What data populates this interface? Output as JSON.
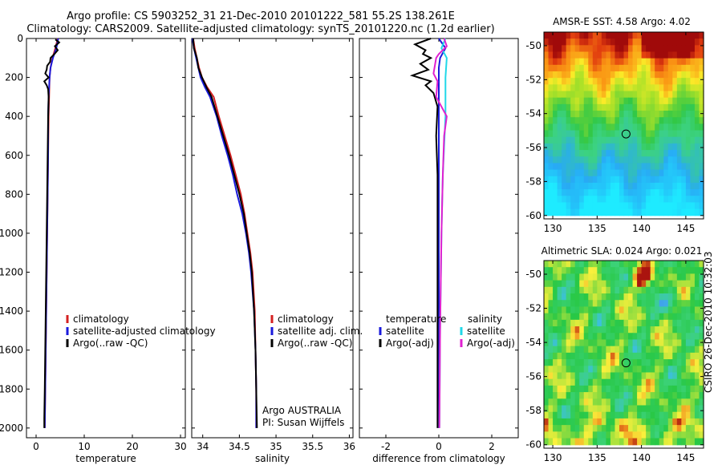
{
  "header": {
    "title_line1": "Argo profile: CS 5903252_31 21-Dec-2010 20101222_581 55.2S 138.261E",
    "title_line2": "Climatology: CARS2009. Satellite-adjusted climatology: synTS_20101220.nc (1.2d earlier)"
  },
  "footer": {
    "stamp": "CSIRO 26-Dec-2010 10:32:03"
  },
  "colors": {
    "climatology": "#d42020",
    "satellite": "#1a1adc",
    "argo": "#000000",
    "salinity_satellite": "#20d8e8",
    "salinity_argo": "#e020d0"
  },
  "chart_data": [
    {
      "type": "line",
      "id": "temperature-profile",
      "xlabel": "temperature",
      "ylabel": "",
      "xlim": [
        -2,
        31
      ],
      "ylim": [
        2050,
        0
      ],
      "xticks": [
        0,
        10,
        20,
        30
      ],
      "yticks": [
        0,
        200,
        400,
        600,
        800,
        1000,
        1200,
        1400,
        1600,
        1800,
        2000
      ],
      "legend": [
        "climatology",
        "satellite-adjusted climatology",
        "Argo(..raw -QC)"
      ],
      "series": [
        {
          "name": "climatology",
          "color": "#d42020",
          "points": [
            [
              4.5,
              0
            ],
            [
              4.0,
              50
            ],
            [
              3.4,
              100
            ],
            [
              3.0,
              150
            ],
            [
              2.8,
              200
            ],
            [
              2.7,
              300
            ],
            [
              2.6,
              400
            ],
            [
              2.5,
              600
            ],
            [
              2.4,
              800
            ],
            [
              2.3,
              1000
            ],
            [
              2.2,
              1200
            ],
            [
              2.1,
              1400
            ],
            [
              2.0,
              1600
            ],
            [
              1.9,
              1800
            ],
            [
              1.8,
              2000
            ]
          ]
        },
        {
          "name": "satellite-adjusted climatology",
          "color": "#1a1adc",
          "points": [
            [
              4.6,
              0
            ],
            [
              4.2,
              50
            ],
            [
              3.5,
              100
            ],
            [
              3.0,
              150
            ],
            [
              2.8,
              200
            ],
            [
              2.6,
              300
            ],
            [
              2.5,
              400
            ],
            [
              2.5,
              600
            ],
            [
              2.4,
              800
            ],
            [
              2.3,
              1000
            ],
            [
              2.2,
              1200
            ],
            [
              2.1,
              1400
            ],
            [
              2.0,
              1600
            ],
            [
              1.9,
              1800
            ],
            [
              1.8,
              2000
            ]
          ]
        },
        {
          "name": "Argo(..raw -QC)",
          "color": "#000000",
          "points": [
            [
              4.0,
              5
            ],
            [
              4.8,
              20
            ],
            [
              3.9,
              40
            ],
            [
              4.5,
              60
            ],
            [
              3.8,
              80
            ],
            [
              3.0,
              100
            ],
            [
              2.9,
              120
            ],
            [
              2.3,
              140
            ],
            [
              2.2,
              160
            ],
            [
              1.9,
              180
            ],
            [
              2.6,
              200
            ],
            [
              1.7,
              220
            ],
            [
              2.2,
              240
            ],
            [
              2.5,
              260
            ],
            [
              2.6,
              300
            ],
            [
              2.5,
              400
            ],
            [
              2.4,
              600
            ],
            [
              2.3,
              800
            ],
            [
              2.2,
              1000
            ],
            [
              2.1,
              1200
            ],
            [
              2.0,
              1400
            ],
            [
              1.9,
              1600
            ],
            [
              1.8,
              1800
            ],
            [
              1.7,
              1950
            ],
            [
              1.7,
              2000
            ]
          ]
        }
      ]
    },
    {
      "type": "line",
      "id": "salinity-profile",
      "xlabel": "salinity",
      "xlim": [
        33.85,
        36.05
      ],
      "ylim": [
        2050,
        0
      ],
      "xticks": [
        34,
        34.5,
        35,
        35.5,
        36
      ],
      "legend": [
        "climatology",
        "satellite adj. clim.",
        "Argo(..raw -QC)"
      ],
      "annotations": [
        "Argo AUSTRALIA",
        "PI: Susan Wijffels"
      ],
      "series": [
        {
          "name": "climatology",
          "color": "#d42020",
          "points": [
            [
              33.87,
              0
            ],
            [
              33.89,
              50
            ],
            [
              33.92,
              100
            ],
            [
              33.95,
              150
            ],
            [
              33.99,
              200
            ],
            [
              34.06,
              250
            ],
            [
              34.15,
              300
            ],
            [
              34.22,
              400
            ],
            [
              34.3,
              500
            ],
            [
              34.38,
              600
            ],
            [
              34.45,
              700
            ],
            [
              34.52,
              800
            ],
            [
              34.57,
              900
            ],
            [
              34.61,
              1000
            ],
            [
              34.65,
              1100
            ],
            [
              34.68,
              1200
            ],
            [
              34.71,
              1400
            ],
            [
              34.72,
              1600
            ],
            [
              34.73,
              1800
            ],
            [
              34.73,
              2000
            ]
          ]
        },
        {
          "name": "satellite adj. clim.",
          "color": "#1a1adc",
          "points": [
            [
              33.86,
              0
            ],
            [
              33.88,
              50
            ],
            [
              33.91,
              100
            ],
            [
              33.94,
              150
            ],
            [
              33.97,
              200
            ],
            [
              34.03,
              250
            ],
            [
              34.1,
              300
            ],
            [
              34.19,
              400
            ],
            [
              34.26,
              500
            ],
            [
              34.34,
              600
            ],
            [
              34.41,
              700
            ],
            [
              34.47,
              800
            ],
            [
              34.54,
              900
            ],
            [
              34.59,
              1000
            ],
            [
              34.63,
              1100
            ],
            [
              34.66,
              1200
            ],
            [
              34.7,
              1400
            ],
            [
              34.72,
              1600
            ],
            [
              34.73,
              1800
            ],
            [
              34.73,
              2000
            ]
          ]
        },
        {
          "name": "Argo(..raw -QC)",
          "color": "#000000",
          "points": [
            [
              33.87,
              0
            ],
            [
              33.88,
              50
            ],
            [
              33.92,
              100
            ],
            [
              33.94,
              150
            ],
            [
              33.99,
              200
            ],
            [
              34.05,
              250
            ],
            [
              34.12,
              300
            ],
            [
              34.2,
              400
            ],
            [
              34.28,
              500
            ],
            [
              34.36,
              600
            ],
            [
              34.43,
              700
            ],
            [
              34.5,
              800
            ],
            [
              34.56,
              900
            ],
            [
              34.6,
              1000
            ],
            [
              34.64,
              1100
            ],
            [
              34.67,
              1200
            ],
            [
              34.7,
              1400
            ],
            [
              34.72,
              1600
            ],
            [
              34.73,
              1800
            ],
            [
              34.74,
              2000
            ]
          ]
        }
      ]
    },
    {
      "type": "line",
      "id": "difference-profile",
      "xlabel": "difference from climatology",
      "xlim": [
        -3.0,
        3.0
      ],
      "ylim": [
        2050,
        0
      ],
      "xticks": [
        -2,
        0,
        2
      ],
      "legend_groups": [
        {
          "title": "temperature",
          "entries": [
            "satellite",
            "Argo(-adj)"
          ]
        },
        {
          "title": "salinity",
          "entries": [
            "satellite",
            "Argo(-adj)"
          ]
        }
      ],
      "series": [
        {
          "name": "temperature satellite",
          "color": "#1a1adc",
          "points": [
            [
              0.0,
              0
            ],
            [
              0.25,
              50
            ],
            [
              0.05,
              100
            ],
            [
              0.0,
              150
            ],
            [
              0.0,
              200
            ],
            [
              0.0,
              300
            ],
            [
              0.0,
              500
            ],
            [
              0.0,
              1000
            ],
            [
              0.0,
              1500
            ],
            [
              0.0,
              2000
            ]
          ]
        },
        {
          "name": "temperature Argo(-adj)",
          "color": "#000000",
          "points": [
            [
              -0.3,
              0
            ],
            [
              -0.9,
              30
            ],
            [
              -0.5,
              60
            ],
            [
              -0.6,
              80
            ],
            [
              -0.3,
              100
            ],
            [
              -0.7,
              130
            ],
            [
              -0.4,
              160
            ],
            [
              -1.0,
              190
            ],
            [
              -0.3,
              220
            ],
            [
              -0.5,
              240
            ],
            [
              -0.2,
              280
            ],
            [
              -0.05,
              350
            ],
            [
              -0.1,
              500
            ],
            [
              -0.05,
              700
            ],
            [
              -0.05,
              900
            ],
            [
              -0.05,
              1200
            ],
            [
              -0.05,
              1500
            ],
            [
              -0.05,
              1800
            ],
            [
              -0.05,
              2000
            ]
          ]
        },
        {
          "name": "salinity satellite",
          "color": "#20d8e8",
          "points": [
            [
              0.25,
              0
            ],
            [
              0.1,
              50
            ],
            [
              0.3,
              100
            ],
            [
              0.25,
              200
            ],
            [
              0.25,
              400
            ],
            [
              0.15,
              700
            ],
            [
              0.1,
              1000
            ],
            [
              0.05,
              1500
            ],
            [
              0.02,
              2000
            ]
          ]
        },
        {
          "name": "salinity Argo(-adj)",
          "color": "#e020d0",
          "points": [
            [
              0.2,
              0
            ],
            [
              0.3,
              40
            ],
            [
              0.0,
              80
            ],
            [
              -0.1,
              100
            ],
            [
              -0.2,
              180
            ],
            [
              -0.05,
              220
            ],
            [
              -0.1,
              300
            ],
            [
              0.3,
              400
            ],
            [
              0.2,
              500
            ],
            [
              0.15,
              700
            ],
            [
              0.1,
              1000
            ],
            [
              0.05,
              1500
            ],
            [
              0.02,
              2000
            ]
          ]
        }
      ]
    },
    {
      "type": "heatmap",
      "id": "sst-map",
      "title": "AMSR-E SST: 4.58 Argo: 4.02",
      "xlim": [
        129,
        147
      ],
      "ylim": [
        -60.2,
        -49.2
      ],
      "xticks": [
        130,
        135,
        140,
        145
      ],
      "yticks": [
        -50,
        -52,
        -54,
        -56,
        -58,
        -60
      ],
      "marker": {
        "lon": 138.261,
        "lat": -55.2
      }
    },
    {
      "type": "heatmap",
      "id": "sla-map",
      "title": "Altimetric SLA: 0.024 Argo: 0.021",
      "xlim": [
        129,
        147
      ],
      "ylim": [
        -60.2,
        -49.2
      ],
      "xticks": [
        130,
        135,
        140,
        145
      ],
      "yticks": [
        -50,
        -52,
        -54,
        -56,
        -58,
        -60
      ],
      "marker": {
        "lon": 138.261,
        "lat": -55.2
      }
    }
  ]
}
